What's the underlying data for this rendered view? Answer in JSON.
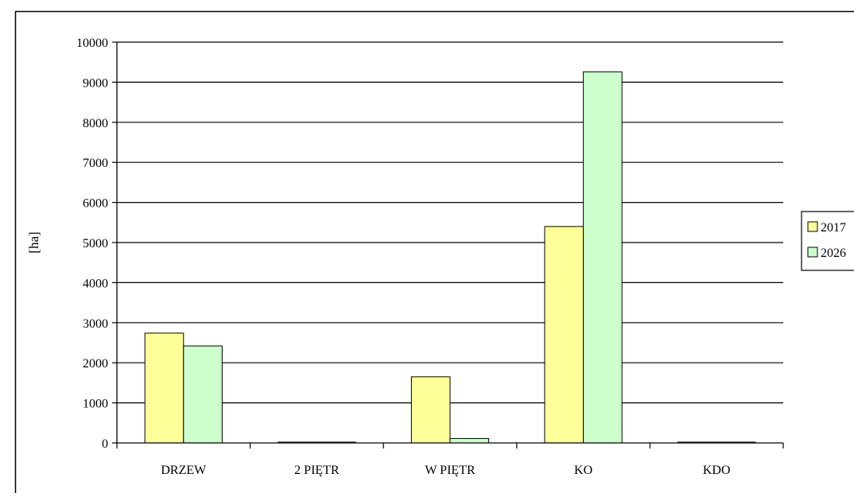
{
  "chart_data": {
    "type": "bar",
    "title": "",
    "xlabel": "",
    "ylabel": "[ha]",
    "ylim": [
      0,
      10000
    ],
    "yticks": [
      0,
      1000,
      2000,
      3000,
      4000,
      5000,
      6000,
      7000,
      8000,
      9000,
      10000
    ],
    "grid": true,
    "legend_position": "right",
    "categories": [
      "DRZEW",
      "2 PIĘTR",
      "W PIĘTR",
      "KO",
      "KDO"
    ],
    "series": [
      {
        "name": "2017",
        "color": "#ffff99",
        "values": [
          2740,
          20,
          1650,
          5400,
          20
        ]
      },
      {
        "name": "2026",
        "color": "#ccffcc",
        "values": [
          2420,
          20,
          110,
          9260,
          20
        ]
      }
    ]
  }
}
